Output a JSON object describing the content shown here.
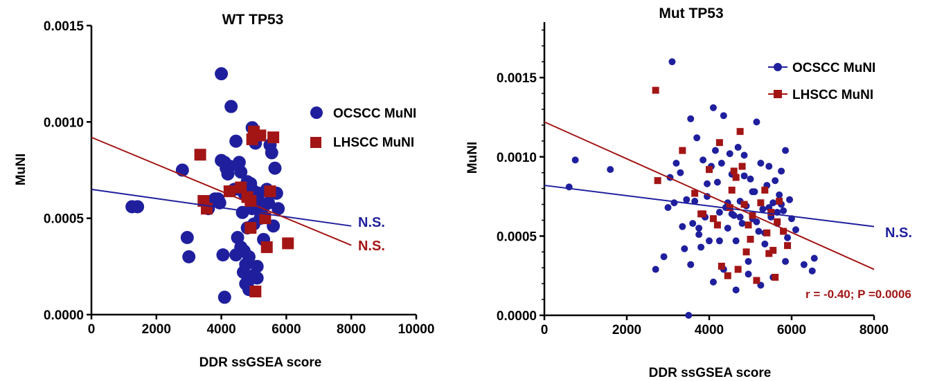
{
  "chart_data": [
    {
      "type": "scatter",
      "title": "WT TP53",
      "xlabel": "DDR ssGSEA score",
      "ylabel": "MuNI",
      "xlim": [
        0,
        10000
      ],
      "ylim": [
        0,
        0.0015
      ],
      "xticks": [
        0,
        2000,
        4000,
        6000,
        8000,
        10000
      ],
      "xtick_labels": [
        "0",
        "2000",
        "4000",
        "6000",
        "8000",
        "10000"
      ],
      "yticks": [
        0,
        0.0005,
        0.001,
        0.0015
      ],
      "ytick_labels": [
        "0.0000",
        "0.0005",
        "0.0010",
        "0.0015"
      ],
      "grid": false,
      "legend_position": "top-right",
      "series": [
        {
          "name": "OCSCC MuNI",
          "color": "#1f1f9e",
          "marker": "circle",
          "x": [
            1250,
            1420,
            2950,
            3000,
            3600,
            3900,
            4000,
            4000,
            4100,
            4150,
            4200,
            4250,
            4300,
            4400,
            4450,
            4550,
            4600,
            4600,
            4650,
            4700,
            4700,
            4750,
            4750,
            4800,
            4800,
            4850,
            4850,
            4900,
            4950,
            4950,
            5000,
            5000,
            5050,
            5100,
            5150,
            5200,
            5200,
            5250,
            5300,
            5300,
            5400,
            5450,
            5500,
            5550,
            5600,
            5650,
            5700,
            5750,
            2800,
            4100,
            4500,
            3800,
            3950,
            4050,
            4450,
            4680,
            4850,
            4950,
            5100,
            5350
          ],
          "y": [
            0.00056,
            0.00056,
            0.0004,
            0.0003,
            0.00055,
            0.0006,
            0.00125,
            0.0008,
            0.00079,
            0.00076,
            0.00073,
            0.00077,
            0.00108,
            0.00065,
            0.0009,
            0.00079,
            0.00035,
            0.00074,
            0.00053,
            0.00063,
            0.00033,
            0.00026,
            0.00016,
            0.00069,
            0.00045,
            0.0003,
            0.00018,
            0.00068,
            0.00097,
            0.00055,
            0.00047,
            0.00064,
            0.00089,
            0.00025,
            0.00063,
            0.00058,
            0.0005,
            0.00055,
            0.00051,
            0.00039,
            0.00065,
            0.00058,
            0.00088,
            0.00084,
            0.00046,
            0.00076,
            0.00063,
            0.00055,
            0.00075,
            9e-05,
            0.0004,
            0.0006,
            0.00058,
            0.00031,
            0.00031,
            0.00022,
            0.00013,
            0.0002,
            0.00019,
            0.00057
          ]
        },
        {
          "name": "LHSCC MuNI",
          "color": "#a31515",
          "marker": "square",
          "x": [
            3350,
            3450,
            3550,
            4250,
            4600,
            4800,
            4900,
            4900,
            4950,
            5000,
            5050,
            5200,
            5350,
            5400,
            5500,
            5600,
            6050
          ],
          "y": [
            0.00083,
            0.00059,
            0.00055,
            0.00064,
            0.00066,
            0.00061,
            0.00045,
            0.00059,
            0.00091,
            0.00095,
            0.00012,
            0.00093,
            0.0005,
            0.00035,
            0.00064,
            0.00092,
            0.00037
          ]
        }
      ],
      "fit_lines": [
        {
          "series": "OCSCC MuNI",
          "color": "#1f1f9e",
          "x": [
            0,
            8000
          ],
          "y": [
            0.00065,
            0.00046
          ],
          "label": "N.S."
        },
        {
          "series": "LHSCC MuNI",
          "color": "#a31515",
          "x": [
            0,
            8000
          ],
          "y": [
            0.00092,
            0.00036
          ],
          "label": "N.S."
        }
      ],
      "annotations": []
    },
    {
      "type": "scatter",
      "title": "Mut TP53",
      "xlabel": "DDR ssGSEA score",
      "ylabel": "MuNI",
      "xlim": [
        0,
        8000
      ],
      "ylim": [
        0,
        0.00185
      ],
      "xticks": [
        0,
        2000,
        4000,
        6000,
        8000
      ],
      "xtick_labels": [
        "0",
        "2000",
        "4000",
        "6000",
        "8000"
      ],
      "yticks": [
        0,
        0.0005,
        0.001,
        0.0015
      ],
      "ytick_labels": [
        "0.0000",
        "0.0005",
        "0.0010",
        "0.0015"
      ],
      "grid": false,
      "legend_position": "top-right",
      "series": [
        {
          "name": "OCSCC MuNI",
          "color": "#1f1f9e",
          "marker": "circle",
          "x": [
            600,
            750,
            1600,
            2700,
            2900,
            3000,
            3050,
            3100,
            3150,
            3200,
            3300,
            3350,
            3400,
            3450,
            3500,
            3550,
            3600,
            3650,
            3700,
            3750,
            3800,
            3850,
            3900,
            3950,
            4000,
            4050,
            4100,
            4150,
            4200,
            4250,
            4300,
            4350,
            4400,
            4450,
            4500,
            4550,
            4600,
            4650,
            4700,
            4750,
            4800,
            4850,
            4900,
            4950,
            5000,
            5050,
            5100,
            5150,
            5200,
            5250,
            5300,
            5350,
            5400,
            5450,
            5500,
            5550,
            5600,
            5650,
            5700,
            5750,
            5800,
            5850,
            5900,
            5950,
            6000,
            6100,
            6300,
            6500,
            6550,
            3550,
            4100,
            4350,
            4650,
            4950,
            5250,
            5550,
            5850,
            3950,
            4450,
            4750,
            5050,
            5350,
            5650,
            4250,
            4850,
            5150,
            5450,
            5750,
            3750,
            4550
          ],
          "y": [
            0.00081,
            0.00098,
            0.00092,
            0.00029,
            0.00037,
            0.00068,
            0.00087,
            0.0016,
            0.00071,
            0.00096,
            0.0009,
            0.00056,
            0.00042,
            0.00073,
            0.0,
            0.00124,
            0.00058,
            0.00072,
            0.00112,
            0.00051,
            0.00043,
            0.00098,
            0.00062,
            0.00075,
            0.00047,
            0.00094,
            0.00131,
            0.00104,
            0.00084,
            0.00065,
            0.00096,
            0.00126,
            0.00068,
            0.00055,
            0.00102,
            0.00089,
            0.00063,
            0.00047,
            0.00106,
            0.00072,
            0.00058,
            0.00101,
            0.00069,
            0.00034,
            0.00086,
            0.00061,
            0.00078,
            0.00122,
            0.00053,
            0.00096,
            0.00067,
            0.00045,
            0.00082,
            0.00094,
            0.00062,
            0.00071,
            0.00085,
            0.00058,
            0.00076,
            0.00091,
            0.00066,
            0.00104,
            0.00049,
            0.00073,
            0.00061,
            0.00054,
            0.00032,
            0.00028,
            0.00036,
            0.00032,
            0.00021,
            0.00029,
            0.00016,
            0.00026,
            0.00019,
            0.00024,
            0.00034,
            0.00083,
            0.00071,
            0.00062,
            0.00078,
            0.00052,
            0.00065,
            0.00047,
            0.00088,
            0.00059,
            0.00068,
            0.0007,
            0.00055,
            0.00064
          ]
        },
        {
          "name": "LHSCC MuNI",
          "color": "#a31515",
          "marker": "square",
          "x": [
            2700,
            2750,
            3350,
            3650,
            3850,
            4000,
            4100,
            4200,
            4250,
            4300,
            4450,
            4500,
            4550,
            4600,
            4700,
            4750,
            4800,
            4850,
            4900,
            4950,
            5000,
            5050,
            5150,
            5250,
            5350,
            5400,
            5450,
            5500,
            5600,
            5650,
            5700,
            5800,
            5900,
            4650,
            3800,
            5550
          ],
          "y": [
            0.00142,
            0.00085,
            0.00104,
            0.00077,
            0.00064,
            0.00092,
            0.00061,
            0.00057,
            0.00109,
            0.00031,
            0.00025,
            0.00068,
            0.00079,
            0.00091,
            0.00029,
            0.00116,
            0.00094,
            0.0007,
            0.0004,
            0.00057,
            0.00048,
            0.00063,
            0.00022,
            0.00071,
            0.00079,
            0.00052,
            0.00039,
            0.00065,
            0.00024,
            0.00059,
            0.00072,
            0.00053,
            0.00044,
            0.00087,
            0.00064,
            0.00041
          ]
        }
      ],
      "fit_lines": [
        {
          "series": "OCSCC MuNI",
          "color": "#1f1f9e",
          "x": [
            0,
            8000
          ],
          "y": [
            0.00082,
            0.00056
          ],
          "label": "N.S."
        },
        {
          "series": "LHSCC MuNI",
          "color": "#a31515",
          "x": [
            0,
            8000
          ],
          "y": [
            0.00122,
            0.00029
          ],
          "label": ""
        }
      ],
      "annotations": [
        {
          "text": "r = -0.40; P =0.0006",
          "color": "#a31515"
        }
      ]
    }
  ]
}
